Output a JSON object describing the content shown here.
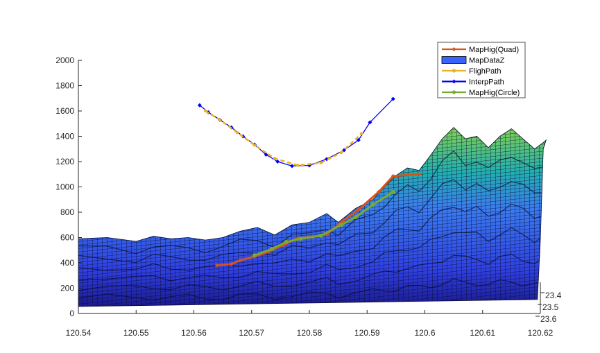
{
  "chart_data": {
    "type": "line",
    "title": "",
    "xlabel": "",
    "ylabel": "",
    "zlabel": "",
    "xlim": [
      120.54,
      120.62
    ],
    "ylim": [
      23.4,
      23.6
    ],
    "zlim": [
      0,
      2000
    ],
    "x_ticks": [
      "120.54",
      "120.55",
      "120.56",
      "120.57",
      "120.58",
      "120.59",
      "120.6",
      "120.61",
      "120.62"
    ],
    "y_ticks": [
      "23.4",
      "23.5",
      "23.6"
    ],
    "z_ticks": [
      "0",
      "200",
      "400",
      "600",
      "800",
      "1000",
      "1200",
      "1400",
      "1600",
      "1800",
      "2000"
    ],
    "legend": {
      "location": "top-right",
      "entries": [
        {
          "label": "MapHig(Quad)",
          "color": "#D95319",
          "marker": "diamond"
        },
        {
          "label": "MapDataZ",
          "color": "#3A62FF",
          "marker": "patch"
        },
        {
          "label": "FlighPath",
          "color": "#EDB120",
          "marker": "dot"
        },
        {
          "label": "InterpPath",
          "color": "#0000FF",
          "marker": "diamond"
        },
        {
          "label": "MapHig(Circle)",
          "color": "#77AC30",
          "marker": "circle"
        }
      ]
    },
    "series": [
      {
        "name": "InterpPath",
        "color": "#0000FF",
        "x": [
          120.561,
          120.5625,
          120.5645,
          120.5665,
          120.5685,
          120.5705,
          120.5725,
          120.5745,
          120.577,
          120.58,
          120.583,
          120.586,
          120.5885,
          120.5905,
          120.5945
        ],
        "z": [
          1645,
          1590,
          1530,
          1470,
          1400,
          1335,
          1255,
          1200,
          1165,
          1170,
          1220,
          1290,
          1370,
          1510,
          1695
        ]
      },
      {
        "name": "FlighPath",
        "color": "#EDB120",
        "x": [
          120.562,
          120.5645,
          120.5675,
          120.5705,
          120.574,
          120.578,
          120.582,
          120.5855,
          120.589
        ],
        "z": [
          1600,
          1530,
          1430,
          1330,
          1225,
          1170,
          1190,
          1270,
          1420
        ]
      },
      {
        "name": "MapHig(Quad)",
        "color": "#D95319",
        "x": [
          120.564,
          120.5665,
          120.568,
          120.5705,
          120.573,
          120.5755,
          120.578,
          120.5805,
          120.583,
          120.5855,
          120.5885,
          120.592,
          120.5945,
          120.597,
          120.599
        ],
        "z": [
          380,
          390,
          420,
          450,
          490,
          540,
          595,
          605,
          625,
          720,
          820,
          960,
          1085,
          1095,
          1100
        ]
      },
      {
        "name": "MapHig(Circle)",
        "color": "#77AC30",
        "x": [
          120.5705,
          120.5735,
          120.576,
          120.5785,
          120.582,
          120.5855,
          120.588,
          120.591,
          120.5945
        ],
        "z": [
          460,
          510,
          565,
          590,
          615,
          700,
          760,
          860,
          960
        ]
      }
    ]
  }
}
